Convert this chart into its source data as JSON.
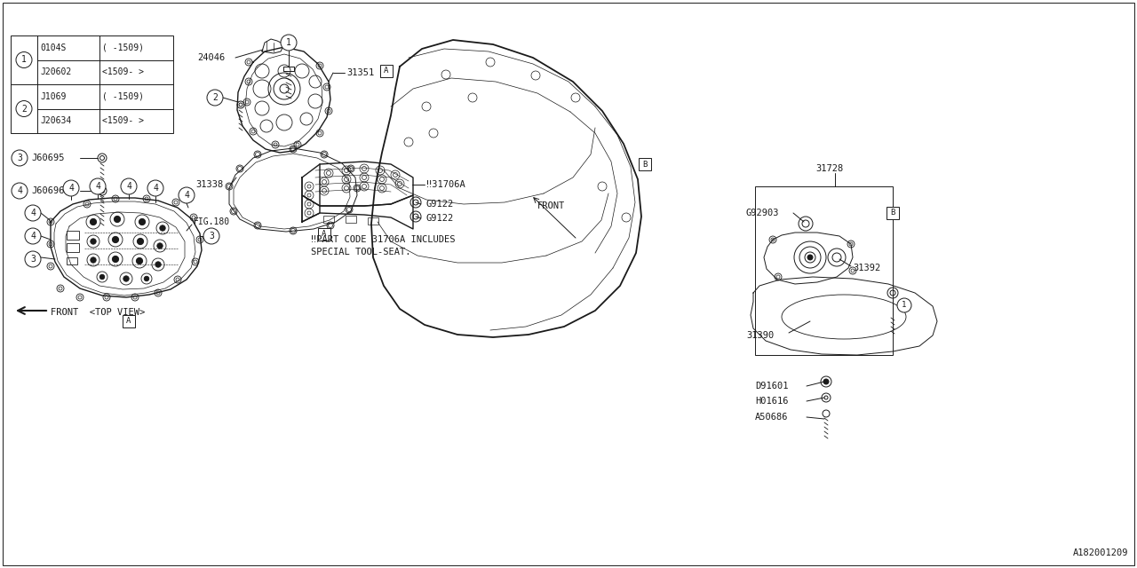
{
  "bg_color": "#ffffff",
  "line_color": "#1a1a1a",
  "diagram_id": "A182001209",
  "table_rows": [
    [
      "1",
      "0104S",
      "( -1509)"
    ],
    [
      "1",
      "J20602",
      "<1509- >"
    ],
    [
      "2",
      "J1069",
      "( -1509)"
    ],
    [
      "2",
      "J20634",
      "<1509- >"
    ]
  ],
  "note_line1": "‼PART CODE 31706A INCLUDES",
  "note_line2": "SPECIAL TOOL-SEAT.",
  "top_view_text": "FRONT  <TOP VIEW>",
  "front_text": "FRONT"
}
